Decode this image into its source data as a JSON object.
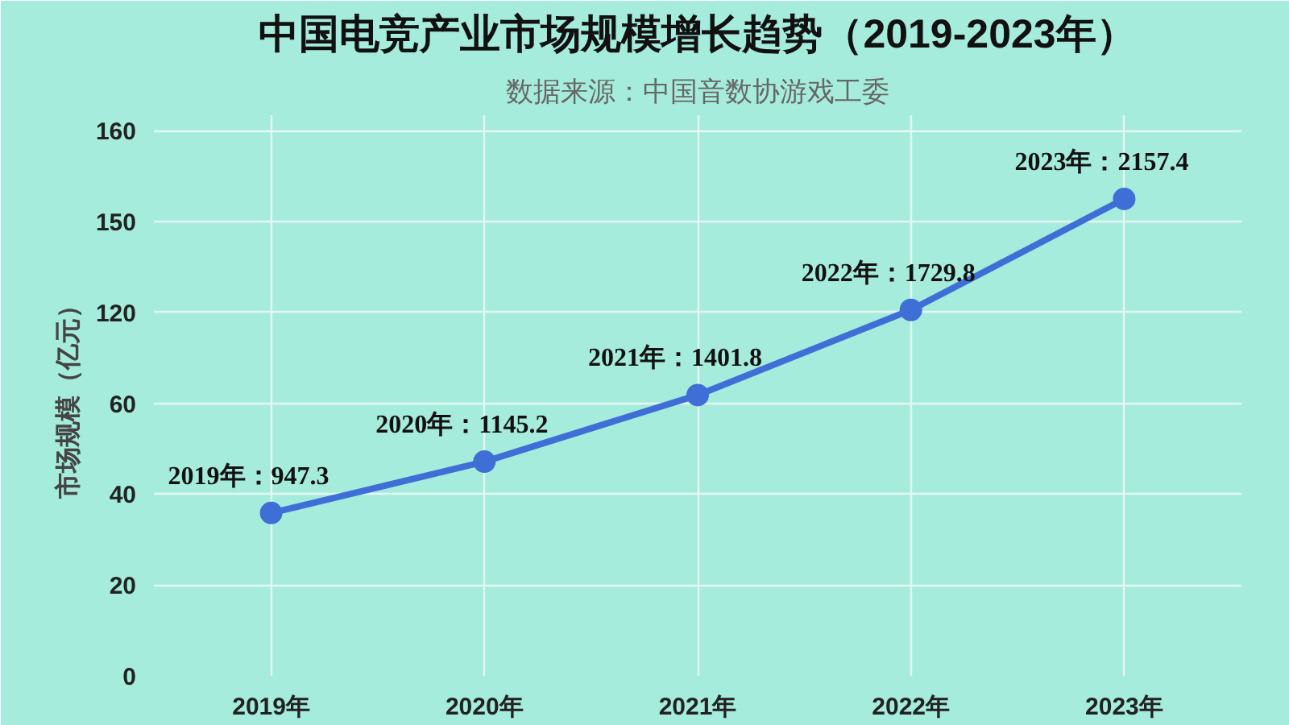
{
  "chart_data": {
    "type": "line",
    "title": "中国电竞产业市场规模增长趋势（2019-2023年）",
    "subtitle": "数据来源：中国音数协游戏工委",
    "ylabel": "市场规模（亿元）",
    "categories": [
      "2019年",
      "2020年",
      "2021年",
      "2022年",
      "2023年"
    ],
    "series": [
      {
        "color": "#3f6fd6",
        "values": [
          947.3,
          1145.2,
          1401.8,
          1729.8,
          2157.4
        ],
        "value_labels": [
          "2019年：947.3",
          "2020年：1145.2",
          "2021年：1401.8",
          "2022年：1729.8",
          "2023年：2157.4"
        ]
      }
    ],
    "ylim": [
      320,
      2480
    ],
    "yticks": [
      {
        "value": 320,
        "label": null
      },
      {
        "value": 670,
        "label": null
      },
      {
        "value": 1020,
        "label": null
      },
      {
        "value": 1370,
        "label": null
      },
      {
        "value": 1720,
        "label": null
      },
      {
        "value": 2070,
        "label": null
      },
      {
        "value": 2420,
        "label": null
      }
    ],
    "annotations": [
      "0",
      "20",
      "40",
      "60",
      "120",
      "150",
      "160"
    ],
    "grid": true,
    "marker": "circle",
    "line_style": "solid"
  }
}
